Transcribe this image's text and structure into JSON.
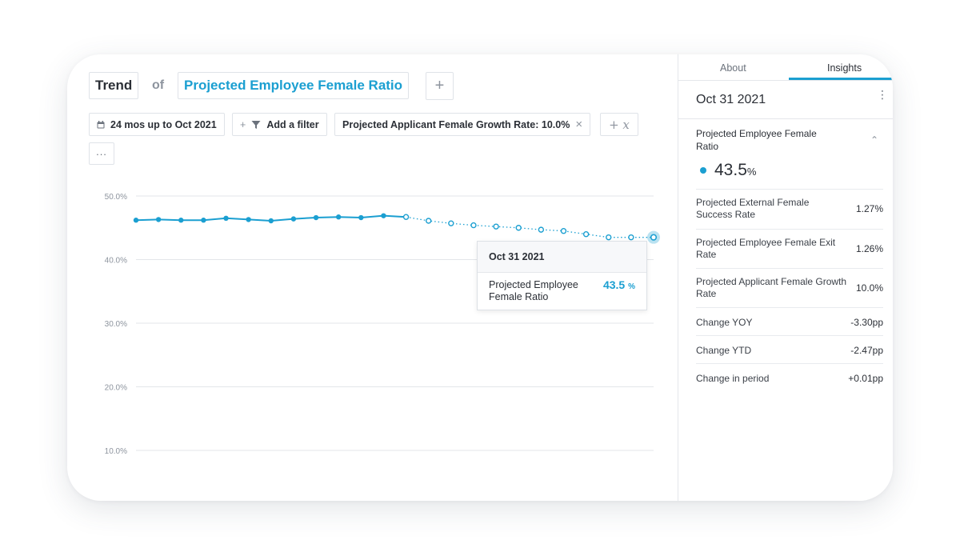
{
  "header": {
    "view_label": "Trend",
    "of_label": "of",
    "metric_label": "Projected Employee Female Ratio",
    "add_label": "+"
  },
  "filters": {
    "date_range": "24 mos up to Oct 2021",
    "add_filter": "Add a filter",
    "active_filter": "Projected Applicant Female Growth Rate: 10.0%",
    "remove": "×",
    "add_variable": "+ x",
    "more": "..."
  },
  "chart_data": {
    "type": "line",
    "ylim": [
      10,
      50
    ],
    "yticks": [
      "50.0%",
      "40.0%",
      "30.0%",
      "20.0%",
      "10.0%"
    ],
    "ytick_values": [
      50,
      40,
      30,
      20,
      10
    ],
    "series": [
      {
        "name": "Projected Employee Female Ratio",
        "color": "#1b9fd1",
        "actual": [
          46.2,
          46.3,
          46.2,
          46.2,
          46.5,
          46.3,
          46.1,
          46.4,
          46.6,
          46.7,
          46.6,
          46.9,
          46.7
        ],
        "projected": [
          46.7,
          46.1,
          45.7,
          45.4,
          45.2,
          45.0,
          44.7,
          44.5,
          44.0,
          43.5,
          43.5,
          43.5
        ]
      }
    ]
  },
  "tooltip": {
    "date": "Oct 31 2021",
    "label": "Projected Employee Female Ratio",
    "value": "43.5",
    "unit": "%"
  },
  "side": {
    "tabs": [
      "About",
      "Insights"
    ],
    "date": "Oct 31 2021",
    "menu": "⋮",
    "section_title": "Projected Employee Female Ratio",
    "chevron": "⌃",
    "big_value": "43.5",
    "big_unit": "%",
    "rows": [
      {
        "label": "Projected External Female Success Rate",
        "value": "1.27%"
      },
      {
        "label": "Projected Employee Female Exit Rate",
        "value": "1.26%"
      },
      {
        "label": "Projected Applicant Female Growth Rate",
        "value": "10.0%"
      },
      {
        "label": "Change YOY",
        "value": "-3.30pp"
      },
      {
        "label": "Change YTD",
        "value": "-2.47pp"
      },
      {
        "label": "Change in period",
        "value": "+0.01pp"
      }
    ]
  },
  "colors": {
    "accent": "#1b9fd1",
    "grid": "#e3e6ea"
  }
}
